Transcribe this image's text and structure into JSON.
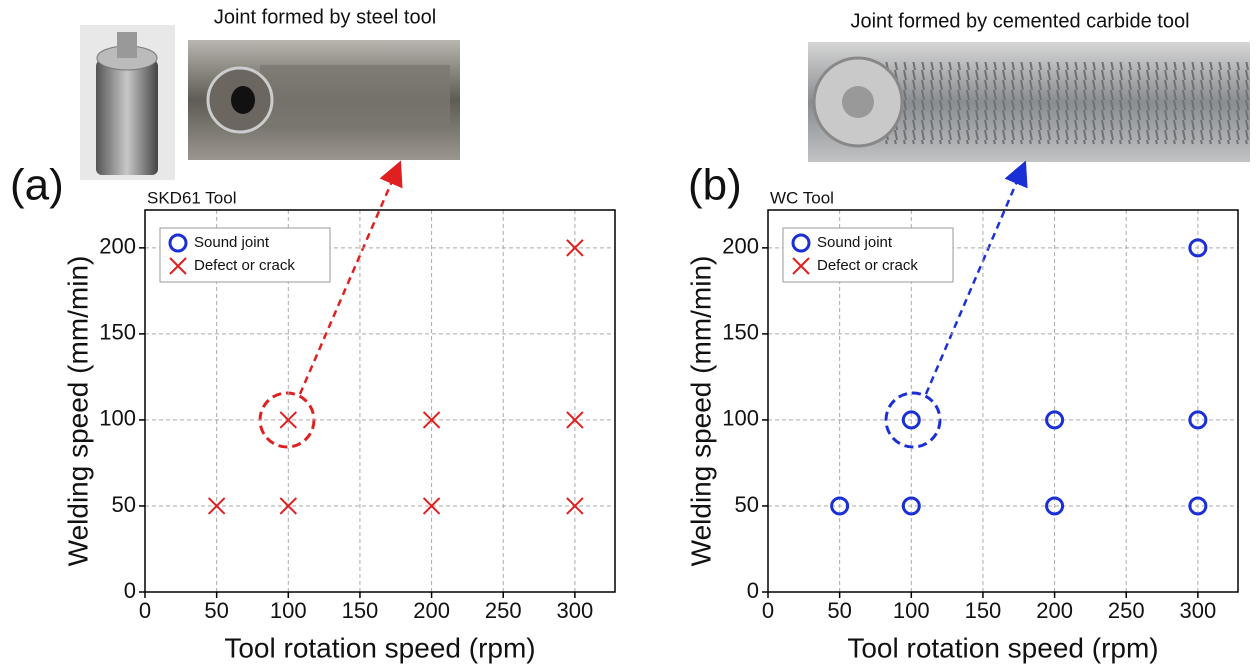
{
  "chart_data": [
    {
      "type": "scatter",
      "panel_label": "(a)",
      "caption": "Joint formed by steel tool",
      "title": "SKD61 Tool",
      "xlabel": "Tool rotation speed (rpm)",
      "ylabel": "Welding speed (mm/min)",
      "xlim": [
        0,
        328
      ],
      "ylim": [
        0,
        222
      ],
      "xticks": [
        0,
        50,
        100,
        150,
        200,
        250,
        300
      ],
      "yticks": [
        0,
        50,
        100,
        150,
        200
      ],
      "grid": true,
      "legend": "upper left",
      "series": [
        {
          "name": "Sound joint",
          "color": "#1a2fd6",
          "marker": "circle",
          "x": [],
          "values": []
        },
        {
          "name": "Defect or crack",
          "color": "#e02020",
          "marker": "x",
          "x": [
            50,
            100,
            200,
            300,
            100,
            200,
            300,
            300
          ],
          "values": [
            50,
            50,
            50,
            50,
            100,
            100,
            100,
            200
          ]
        }
      ]
    },
    {
      "type": "scatter",
      "panel_label": "(b)",
      "caption": "Joint formed by cemented carbide tool",
      "title": "WC Tool",
      "xlabel": "Tool rotation speed (rpm)",
      "ylabel": "Welding speed (mm/min)",
      "xlim": [
        0,
        328
      ],
      "ylim": [
        0,
        222
      ],
      "xticks": [
        0,
        50,
        100,
        150,
        200,
        250,
        300
      ],
      "yticks": [
        0,
        50,
        100,
        150,
        200
      ],
      "grid": true,
      "legend": "upper left",
      "series": [
        {
          "name": "Sound joint",
          "color": "#1a2fd6",
          "marker": "circle",
          "x": [
            50,
            100,
            200,
            300,
            100,
            200,
            300,
            300
          ],
          "values": [
            50,
            50,
            50,
            50,
            100,
            100,
            100,
            200
          ]
        },
        {
          "name": "Defect or crack",
          "color": "#e02020",
          "marker": "x",
          "x": [],
          "values": []
        }
      ]
    }
  ]
}
